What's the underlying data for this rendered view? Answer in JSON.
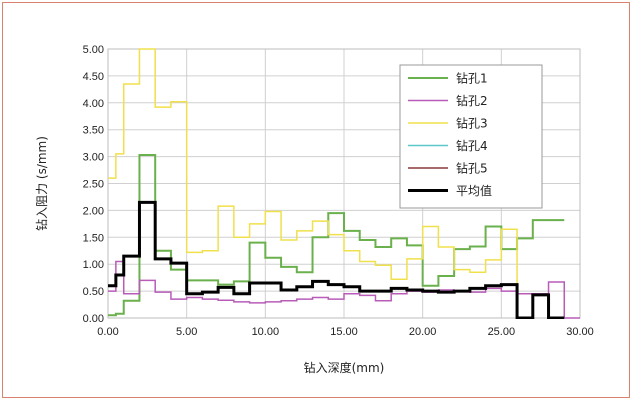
{
  "chart_data": {
    "type": "line",
    "step": true,
    "title": "",
    "xlabel": "钻入深度(mm)",
    "ylabel": "钻入阻力 (s/mm)",
    "xlim": [
      0,
      30
    ],
    "ylim": [
      0,
      5
    ],
    "x_ticks": [
      "0.00",
      "5.00",
      "10.00",
      "15.00",
      "20.00",
      "25.00",
      "30.00"
    ],
    "y_ticks": [
      "0.00",
      "0.50",
      "1.00",
      "1.50",
      "2.00",
      "2.50",
      "3.00",
      "3.50",
      "4.00",
      "4.50",
      "5.00"
    ],
    "grid": true,
    "legend": "top-right",
    "series": [
      {
        "name": "钻孔1",
        "color": "#6ab04c",
        "width": 2,
        "x": [
          0,
          0.5,
          1,
          2,
          3,
          4,
          5,
          6,
          7,
          8,
          9,
          10,
          11,
          12,
          13,
          14,
          15,
          16,
          17,
          18,
          19,
          20,
          21,
          22,
          23,
          24,
          25,
          26,
          27,
          28
        ],
        "y": [
          0.05,
          0.08,
          0.32,
          3.03,
          1.25,
          0.9,
          0.7,
          0.7,
          0.62,
          0.68,
          1.4,
          1.12,
          0.95,
          0.85,
          1.5,
          1.95,
          1.62,
          1.45,
          1.32,
          1.48,
          1.35,
          0.6,
          0.78,
          1.28,
          1.33,
          1.7,
          1.28,
          1.48,
          1.82,
          1.82
        ]
      },
      {
        "name": "钻孔2",
        "color": "#b85cb8",
        "width": 1.5,
        "x": [
          0,
          0.5,
          1,
          2,
          3,
          4,
          5,
          6,
          7,
          8,
          9,
          10,
          11,
          12,
          13,
          14,
          15,
          16,
          17,
          18,
          19,
          20,
          21,
          22,
          23,
          24,
          25,
          26,
          27,
          28,
          29
        ],
        "y": [
          0.5,
          1.05,
          0.45,
          0.7,
          0.48,
          0.35,
          0.38,
          0.35,
          0.33,
          0.3,
          0.28,
          0.3,
          0.32,
          0.35,
          0.38,
          0.35,
          0.45,
          0.42,
          0.32,
          0.45,
          0.5,
          0.48,
          0.52,
          0.5,
          0.48,
          0.55,
          0.5,
          0.45,
          0.45,
          0.67,
          0.0
        ]
      },
      {
        "name": "钻孔3",
        "color": "#f0e04c",
        "width": 1.5,
        "x": [
          0,
          0.5,
          1,
          2,
          3,
          4,
          5,
          6,
          7,
          8,
          9,
          10,
          11,
          12,
          13,
          14,
          15,
          16,
          17,
          18,
          19,
          20,
          21,
          22,
          23,
          24,
          25,
          26
        ],
        "y": [
          2.6,
          3.05,
          4.35,
          5.0,
          3.92,
          4.02,
          1.22,
          1.25,
          2.08,
          1.5,
          1.75,
          1.98,
          1.45,
          1.62,
          1.8,
          1.55,
          1.25,
          1.05,
          0.98,
          0.72,
          1.1,
          1.7,
          1.32,
          0.9,
          0.85,
          1.08,
          1.65,
          0.0
        ]
      },
      {
        "name": "钻孔4",
        "color": "#5cc8c8",
        "width": 1.5,
        "x": [],
        "y": []
      },
      {
        "name": "钻孔5",
        "color": "#8b3a3a",
        "width": 1.5,
        "x": [],
        "y": []
      },
      {
        "name": "平均值",
        "color": "#000000",
        "width": 3,
        "x": [
          0,
          0.5,
          1,
          2,
          3,
          4,
          5,
          6,
          7,
          8,
          9,
          10,
          11,
          12,
          13,
          14,
          15,
          16,
          17,
          18,
          19,
          20,
          21,
          22,
          23,
          24,
          25,
          26,
          27,
          28
        ],
        "y": [
          0.6,
          0.8,
          1.15,
          2.15,
          1.1,
          1.02,
          0.45,
          0.48,
          0.57,
          0.45,
          0.65,
          0.65,
          0.52,
          0.58,
          0.68,
          0.62,
          0.58,
          0.5,
          0.5,
          0.55,
          0.52,
          0.5,
          0.48,
          0.5,
          0.55,
          0.6,
          0.62,
          0.0,
          0.43,
          0.0
        ]
      }
    ]
  }
}
